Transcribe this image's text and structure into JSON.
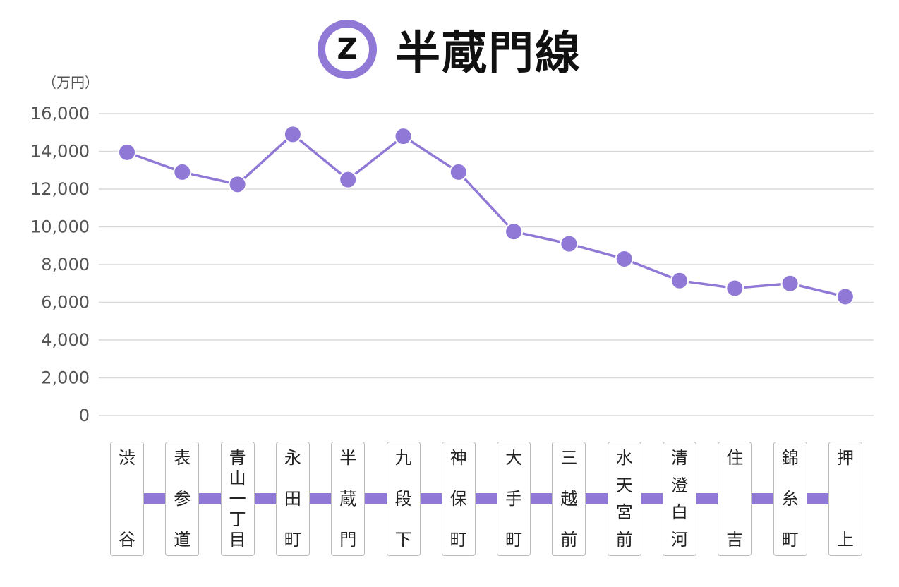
{
  "title": {
    "line_letter": "Z",
    "text": "半蔵門線"
  },
  "colors": {
    "line": "#8f78d6",
    "grid": "#d9d9d9",
    "tick_text": "#555555"
  },
  "chart_data": {
    "type": "line",
    "title": "半蔵門線",
    "unit": "（万円）",
    "categories": [
      "渋谷",
      "表参道",
      "青山一丁目",
      "永田町",
      "半蔵門",
      "九段下",
      "神保町",
      "大手町",
      "三越前",
      "水天宮前",
      "清澄白河",
      "住吉",
      "錦糸町",
      "押上"
    ],
    "series": [
      {
        "values": [
          13950,
          12900,
          12250,
          14900,
          12500,
          14800,
          12900,
          9750,
          9100,
          8300,
          7150,
          6750,
          7000,
          6300
        ]
      }
    ],
    "ylim": [
      0,
      16000
    ],
    "yticks": [
      0,
      2000,
      4000,
      6000,
      8000,
      10000,
      12000,
      14000,
      16000
    ],
    "ytick_labels": [
      "0",
      "2,000",
      "4,000",
      "6,000",
      "8,000",
      "10,000",
      "12,000",
      "14,000",
      "16,000"
    ],
    "grid": true,
    "legend": "none"
  },
  "station_labels": [
    {
      "chars": [
        "渋",
        "谷"
      ]
    },
    {
      "chars": [
        "表",
        "参",
        "道"
      ]
    },
    {
      "chars": [
        "青",
        "山",
        "一",
        "丁",
        "目"
      ]
    },
    {
      "chars": [
        "永",
        "田",
        "町"
      ]
    },
    {
      "chars": [
        "半",
        "蔵",
        "門"
      ]
    },
    {
      "chars": [
        "九",
        "段",
        "下"
      ]
    },
    {
      "chars": [
        "神",
        "保",
        "町"
      ]
    },
    {
      "chars": [
        "大",
        "手",
        "町"
      ]
    },
    {
      "chars": [
        "三",
        "越",
        "前"
      ]
    },
    {
      "chars": [
        "水",
        "天",
        "宮",
        "前"
      ]
    },
    {
      "chars": [
        "清",
        "澄",
        "白",
        "河"
      ]
    },
    {
      "chars": [
        "住",
        "吉"
      ]
    },
    {
      "chars": [
        "錦",
        "糸",
        "町"
      ]
    },
    {
      "chars": [
        "押",
        "上"
      ]
    }
  ]
}
